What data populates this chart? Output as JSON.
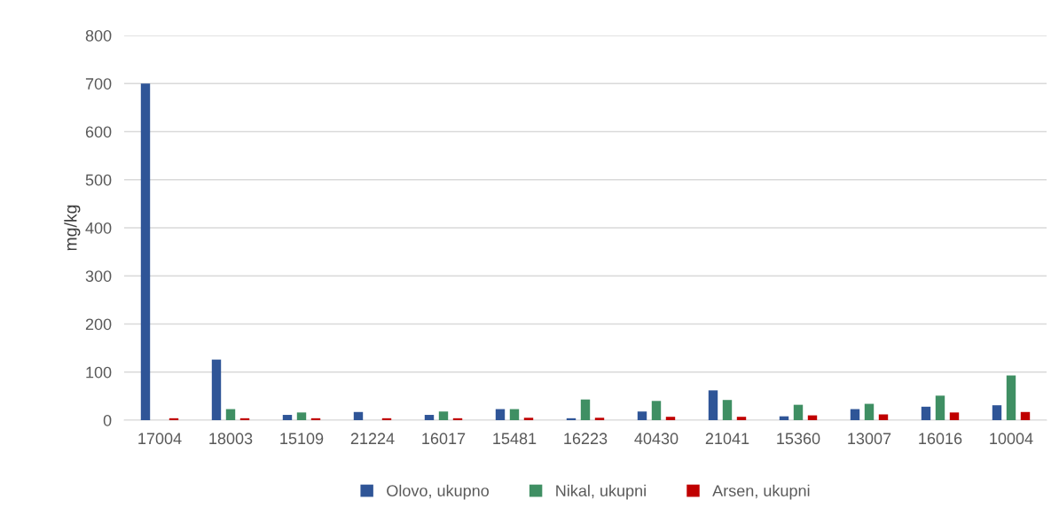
{
  "chart_data": {
    "type": "bar",
    "ylabel": "mg/kg",
    "categories": [
      "17004",
      "18003",
      "15109",
      "21224",
      "16017",
      "15481",
      "16223",
      "40430",
      "21041",
      "15360",
      "13007",
      "16016",
      "10004"
    ],
    "series": [
      {
        "name": "Olovo, ukupno",
        "color": "#2f5597",
        "values": [
          700,
          126,
          11,
          17,
          11,
          23,
          4,
          18,
          62,
          8,
          23,
          28,
          31
        ]
      },
      {
        "name": "Nikal, ukupni",
        "color": "#3f8f63",
        "values": [
          null,
          23,
          16,
          null,
          18,
          23,
          43,
          40,
          42,
          32,
          34,
          51,
          93
        ]
      },
      {
        "name": "Arsen, ukupni",
        "color": "#c00000",
        "values": [
          4,
          4,
          4,
          4,
          4,
          5,
          5,
          7,
          7,
          10,
          12,
          16,
          17
        ]
      }
    ],
    "ylim": [
      0,
      800
    ],
    "yticks": [
      0,
      100,
      200,
      300,
      400,
      500,
      600,
      700,
      800
    ],
    "grid": "y",
    "legend": "bottom"
  }
}
